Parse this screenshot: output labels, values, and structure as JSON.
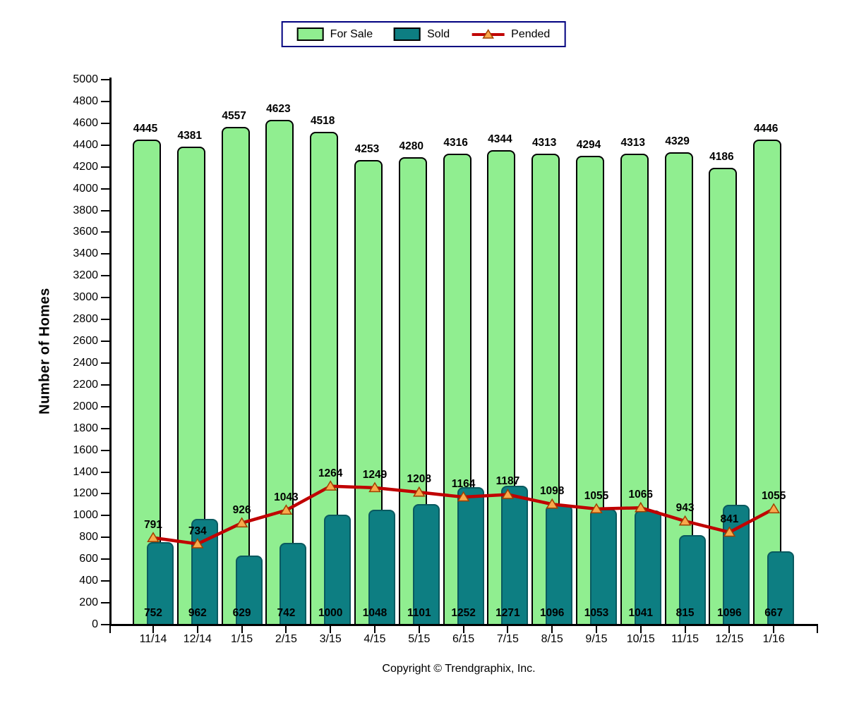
{
  "legend": {
    "items": [
      {
        "label": "For Sale"
      },
      {
        "label": "Sold"
      },
      {
        "label": "Pended"
      }
    ]
  },
  "chart_data": {
    "type": "bar",
    "title": "",
    "xlabel": "",
    "ylabel": "Number of Homes",
    "ylim": [
      0,
      5000
    ],
    "ytick_step": 200,
    "grid": false,
    "legend_position": "top-center",
    "categories": [
      "11/14",
      "12/14",
      "1/15",
      "2/15",
      "3/15",
      "4/15",
      "5/15",
      "6/15",
      "7/15",
      "8/15",
      "9/15",
      "10/15",
      "11/15",
      "12/15",
      "1/16"
    ],
    "series": [
      {
        "name": "For Sale",
        "type": "bar",
        "color": "#90EE90",
        "values": [
          4445,
          4381,
          4557,
          4623,
          4518,
          4253,
          4280,
          4316,
          4344,
          4313,
          4294,
          4313,
          4329,
          4186,
          4446
        ]
      },
      {
        "name": "Sold",
        "type": "bar",
        "color": "#0D7E82",
        "values": [
          752,
          962,
          629,
          742,
          1000,
          1048,
          1101,
          1252,
          1271,
          1096,
          1053,
          1041,
          815,
          1096,
          667
        ]
      },
      {
        "name": "Pended",
        "type": "line",
        "color": "#C00000",
        "marker": "triangle",
        "marker_color": "#F9A94C",
        "values": [
          791,
          734,
          926,
          1043,
          1264,
          1249,
          1208,
          1164,
          1187,
          1098,
          1055,
          1066,
          943,
          841,
          1055
        ]
      }
    ]
  },
  "footer": {
    "copyright": "Copyright © Trendgraphix, Inc."
  }
}
